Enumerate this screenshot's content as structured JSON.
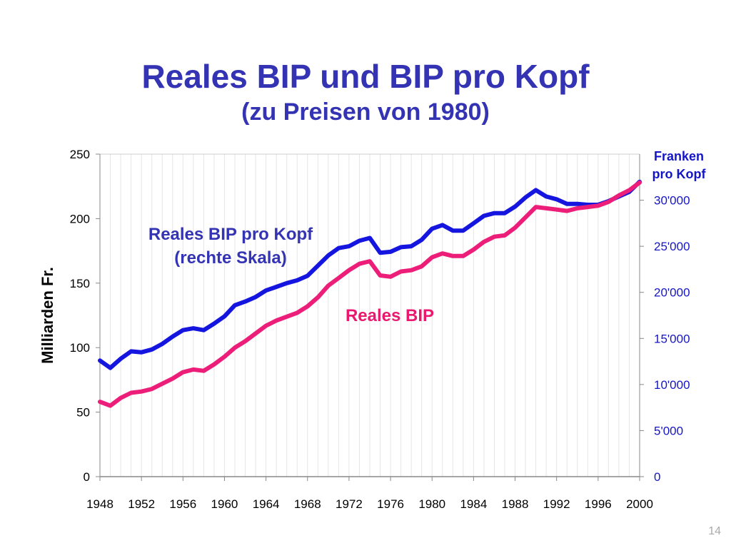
{
  "slide": {
    "title": "Reales BIP und BIP pro Kopf",
    "subtitle": "(zu Preisen von 1980)",
    "page_number": "14"
  },
  "chart_data": {
    "type": "line",
    "title": "Reales BIP und BIP pro Kopf",
    "subtitle": "(zu Preisen von 1980)",
    "x": [
      1948,
      1949,
      1950,
      1951,
      1952,
      1953,
      1954,
      1955,
      1956,
      1957,
      1958,
      1959,
      1960,
      1961,
      1962,
      1963,
      1964,
      1965,
      1966,
      1967,
      1968,
      1969,
      1970,
      1971,
      1972,
      1973,
      1974,
      1975,
      1976,
      1977,
      1978,
      1979,
      1980,
      1981,
      1982,
      1983,
      1984,
      1985,
      1986,
      1987,
      1988,
      1989,
      1990,
      1991,
      1992,
      1993,
      1994,
      1995,
      1996,
      1997,
      1998,
      1999,
      2000
    ],
    "xlim": [
      1948,
      2000
    ],
    "x_ticks": [
      "1948",
      "1952",
      "1956",
      "1960",
      "1964",
      "1968",
      "1972",
      "1976",
      "1980",
      "1984",
      "1988",
      "1992",
      "1996",
      "2000"
    ],
    "ylabel": "Milliarden Fr.",
    "ylim": [
      0,
      250
    ],
    "y_ticks": [
      "0",
      "50",
      "100",
      "150",
      "200",
      "250"
    ],
    "y2label_line1": "Franken",
    "y2label_line2": "pro Kopf",
    "y2lim": [
      0,
      35000
    ],
    "y2_ticks": [
      "0",
      "5'000",
      "10'000",
      "15'000",
      "20'000",
      "25'000",
      "30'000"
    ],
    "grid": "vertical gridlines at each year",
    "series": [
      {
        "name": "Reales BIP pro Kopf (rechte Skala)",
        "label_line1": "Reales BIP pro Kopf",
        "label_line2": "(rechte Skala)",
        "axis": "right",
        "color": "#1515e0",
        "values": [
          12600,
          11800,
          12800,
          13600,
          13500,
          13800,
          14400,
          15200,
          15900,
          16100,
          15900,
          16600,
          17400,
          18600,
          19000,
          19500,
          20200,
          20600,
          21000,
          21300,
          21800,
          22900,
          24000,
          24800,
          25000,
          25600,
          25900,
          24300,
          24400,
          24900,
          25000,
          25700,
          26900,
          27300,
          26700,
          26700,
          27500,
          28300,
          28600,
          28600,
          29300,
          30300,
          31100,
          30400,
          30100,
          29600,
          29600,
          29500,
          29500,
          29900,
          30400,
          30900,
          32000
        ]
      },
      {
        "name": "Reales BIP",
        "label_line1": "Reales BIP",
        "axis": "left",
        "color": "#ec1e79",
        "values": [
          58,
          55,
          61,
          65,
          66,
          68,
          72,
          76,
          81,
          83,
          82,
          87,
          93,
          100,
          105,
          111,
          117,
          121,
          124,
          127,
          132,
          139,
          148,
          154,
          160,
          165,
          167,
          156,
          155,
          159,
          160,
          163,
          170,
          173,
          171,
          171,
          176,
          182,
          186,
          187,
          193,
          201,
          209,
          208,
          207,
          206,
          208,
          209,
          210,
          213,
          218,
          222,
          228
        ]
      }
    ]
  }
}
